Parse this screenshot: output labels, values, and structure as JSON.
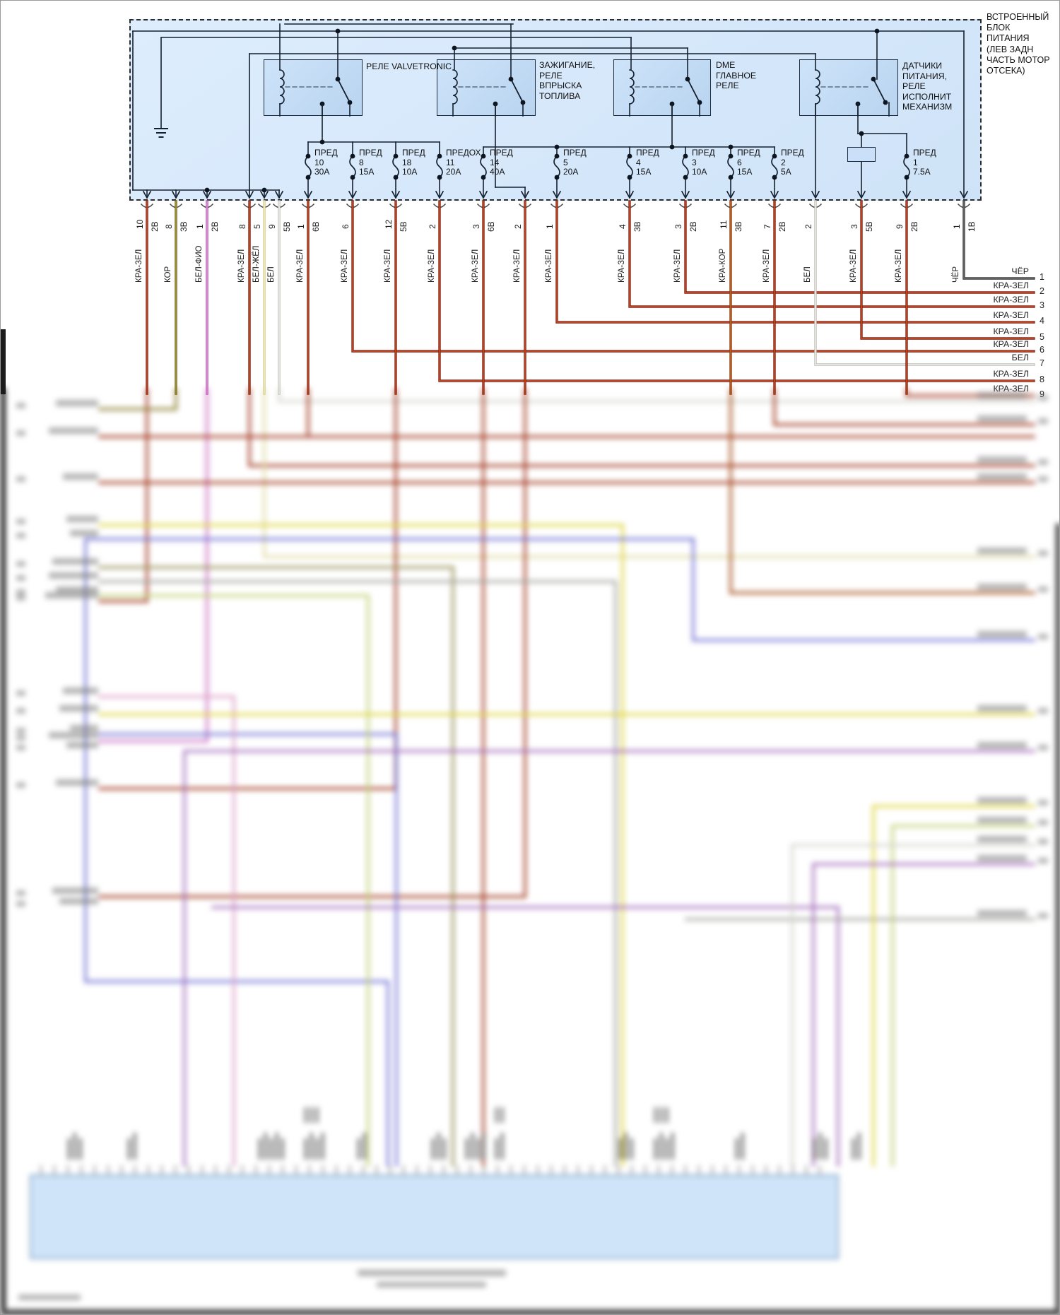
{
  "header": {
    "block_label": "ВСТРОЕННЫЙ\nБЛОК\nПИТАНИЯ\n(ЛЕВ ЗАДН\nЧАСТЬ МОТОР\nОТСЕКА)"
  },
  "relays": [
    {
      "label": "РЕЛЕ VALVETRONIC"
    },
    {
      "label": "ЗАЖИГАНИЕ,\nРЕЛЕ\nВПРЫСКА\nТОПЛИВА"
    },
    {
      "label": "DME\nГЛАВНОЕ\nРЕЛЕ"
    },
    {
      "label": "ДАТЧИКИ\nПИТАНИЯ,\nРЕЛЕ\nИСПОЛНИТ\nМЕХАНИЗМ"
    }
  ],
  "fuses": [
    {
      "name": "ПРЕД",
      "num": "10",
      "amp": "30A"
    },
    {
      "name": "ПРЕД",
      "num": "8",
      "amp": "15A"
    },
    {
      "name": "ПРЕД",
      "num": "18",
      "amp": "10A"
    },
    {
      "name": "ПРЕДОХ",
      "num": "11",
      "amp": "20A"
    },
    {
      "name": "ПРЕД",
      "num": "14",
      "amp": "40A"
    },
    {
      "name": "ПРЕД",
      "num": "5",
      "amp": "20A"
    },
    {
      "name": "ПРЕД",
      "num": "4",
      "amp": "15A"
    },
    {
      "name": "ПРЕД",
      "num": "3",
      "amp": "10A"
    },
    {
      "name": "ПРЕД",
      "num": "6",
      "amp": "15A"
    },
    {
      "name": "ПРЕД",
      "num": "2",
      "amp": "5A"
    },
    {
      "name": "ПРЕД",
      "num": "1",
      "amp": "7.5A"
    }
  ],
  "pins": [
    {
      "num": "10",
      "code": "2В",
      "color": "КРА-ЗЕЛ",
      "color_key": "kra_zel"
    },
    {
      "num": "8",
      "code": "3В",
      "color": "КОР",
      "color_key": "kor"
    },
    {
      "num": "1",
      "code": "2В",
      "color": "БЕЛ-ФИО",
      "color_key": "bel_fio"
    },
    {
      "num": "8",
      "code": "",
      "color": "КРА-ЗЕЛ",
      "color_key": "kra_zel"
    },
    {
      "num": "5",
      "code": "",
      "color": "БЕЛ-ЖЁЛ",
      "color_key": "bel_jel"
    },
    {
      "num": "9",
      "code": "5В",
      "color": "БЕЛ",
      "color_key": "bel"
    },
    {
      "num": "1",
      "code": "6В",
      "color": "КРА-ЗЕЛ",
      "color_key": "kra_zel"
    },
    {
      "num": "6",
      "code": "",
      "color": "КРА-ЗЕЛ",
      "color_key": "kra_zel"
    },
    {
      "num": "12",
      "code": "5В",
      "color": "КРА-ЗЕЛ",
      "color_key": "kra_zel"
    },
    {
      "num": "2",
      "code": "",
      "color": "КРА-ЗЕЛ",
      "color_key": "kra_zel"
    },
    {
      "num": "3",
      "code": "6В",
      "color": "КРА-ЗЕЛ",
      "color_key": "kra_zel"
    },
    {
      "num": "2",
      "code": "",
      "color": "КРА-ЗЕЛ",
      "color_key": "kra_zel"
    },
    {
      "num": "1",
      "code": "",
      "color": "КРА-ЗЕЛ",
      "color_key": "kra_zel"
    },
    {
      "num": "4",
      "code": "3В",
      "color": "КРА-ЗЕЛ",
      "color_key": "kra_zel"
    },
    {
      "num": "3",
      "code": "2В",
      "color": "КРА-ЗЕЛ",
      "color_key": "kra_zel"
    },
    {
      "num": "11",
      "code": "3В",
      "color": "КРА-КОР",
      "color_key": "kra_kor"
    },
    {
      "num": "7",
      "code": "2В",
      "color": "КРА-ЗЕЛ",
      "color_key": "kra_zel"
    },
    {
      "num": "2",
      "code": "",
      "color": "БЕЛ",
      "color_key": "bel"
    },
    {
      "num": "3",
      "code": "5В",
      "color": "КРА-ЗЕЛ",
      "color_key": "kra_zel"
    },
    {
      "num": "9",
      "code": "2В",
      "color": "КРА-ЗЕЛ",
      "color_key": "kra_zel"
    },
    {
      "num": "1",
      "code": "1В",
      "color": "ЧЁР",
      "color_key": "cher"
    }
  ],
  "right_outputs": [
    {
      "num": "1",
      "color": "ЧЁР",
      "color_key": "cher"
    },
    {
      "num": "2",
      "color": "КРА-ЗЕЛ",
      "color_key": "kra_zel"
    },
    {
      "num": "3",
      "color": "КРА-ЗЕЛ",
      "color_key": "kra_zel"
    },
    {
      "num": "4",
      "color": "КРА-ЗЕЛ",
      "color_key": "kra_zel"
    },
    {
      "num": "5",
      "color": "КРА-ЗЕЛ",
      "color_key": "kra_zel"
    },
    {
      "num": "6",
      "color": "КРА-ЗЕЛ",
      "color_key": "kra_zel"
    },
    {
      "num": "7",
      "color": "БЕЛ",
      "color_key": "bel"
    },
    {
      "num": "8",
      "color": "КРА-ЗЕЛ",
      "color_key": "kra_zel"
    },
    {
      "num": "9",
      "color": "КРА-ЗЕЛ",
      "color_key": "kra_zel"
    }
  ],
  "colors": {
    "schematic_line": "#15202e",
    "block_fill": "#d9eafc",
    "relay_fill": "#c9e0f8",
    "kra_zel": {
      "o": "#7e2416",
      "i": "#cf5028"
    },
    "kor": {
      "o": "#6b5d1c",
      "i": "#b3a23c"
    },
    "bel_fio": {
      "o": "#b050a8",
      "i": "#f09be6"
    },
    "bel_jel": {
      "o": "#cfc98f",
      "i": "#f7f3c0"
    },
    "bel": {
      "o": "#bdbdb6",
      "i": "#f4f4ee"
    },
    "kra_kor": {
      "o": "#8a3a10",
      "i": "#c96a2a"
    },
    "cher": {
      "o": "#3c3c3c",
      "i": "#6e6e6e"
    },
    "yellow": {
      "o": "#cfc324",
      "i": "#f6ee6a"
    },
    "blue": {
      "o": "#5555c8",
      "i": "#9a9ae8"
    },
    "gray": {
      "o": "#8f8f8b",
      "i": "#c2c2bc"
    },
    "olive": {
      "o": "#837c44",
      "i": "#b5ad74"
    },
    "palegreen": {
      "o": "#aebf58",
      "i": "#dcebA0"
    },
    "pink": {
      "o": "#cf8ab8",
      "i": "#f2c3e0"
    },
    "purple": {
      "o": "#8f56a8",
      "i": "#c094d6"
    }
  }
}
